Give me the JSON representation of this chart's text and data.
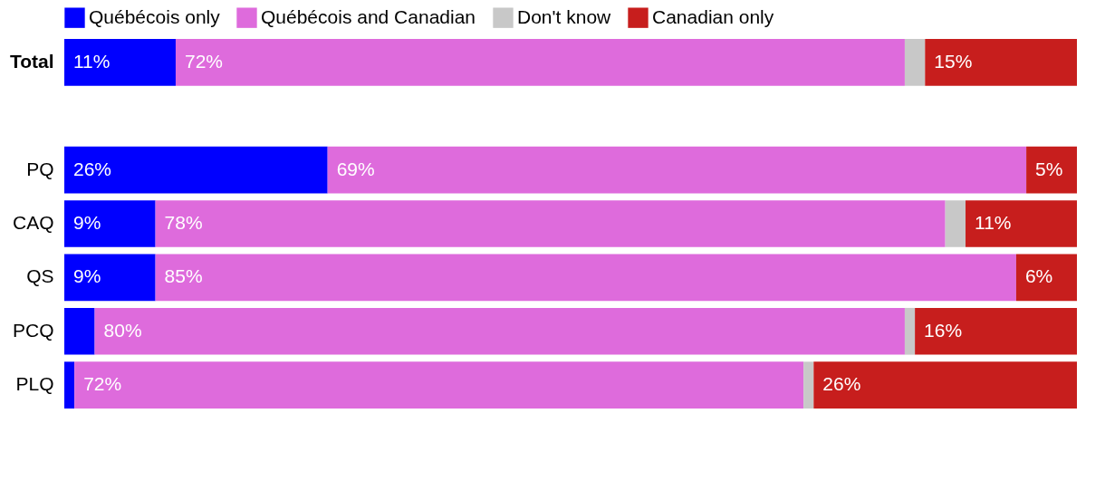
{
  "chart_data": {
    "type": "bar",
    "orientation": "horizontal",
    "stacked": true,
    "categories": [
      "Total",
      null,
      "PQ",
      "CAQ",
      "QS",
      "PCQ",
      "PLQ"
    ],
    "series": [
      {
        "name": "Québécois only",
        "color": "#0000ff",
        "values": [
          11,
          null,
          26,
          9,
          9,
          3,
          1
        ],
        "value_labels": [
          "11%",
          null,
          "26%",
          "9%",
          "9%",
          null,
          null
        ]
      },
      {
        "name": "Québécois and Canadian",
        "color": "#de6bdc",
        "values": [
          72,
          null,
          69,
          78,
          85,
          80,
          72
        ],
        "value_labels": [
          "72%",
          null,
          "69%",
          "78%",
          "85%",
          "80%",
          "72%"
        ]
      },
      {
        "name": "Don't know",
        "color": "#c8c8c8",
        "values": [
          2,
          null,
          null,
          2,
          null,
          1,
          1
        ],
        "value_labels": [
          null,
          null,
          null,
          null,
          null,
          null,
          null
        ]
      },
      {
        "name": "Canadian only",
        "color": "#c71e1d",
        "values": [
          15,
          null,
          5,
          11,
          6,
          16,
          26
        ],
        "value_labels": [
          "15%",
          null,
          "5%",
          "11%",
          "6%",
          "16%",
          "26%"
        ]
      }
    ],
    "xlim": [
      0,
      100
    ],
    "tick_labels": "y",
    "grid": false,
    "legend": "top"
  }
}
